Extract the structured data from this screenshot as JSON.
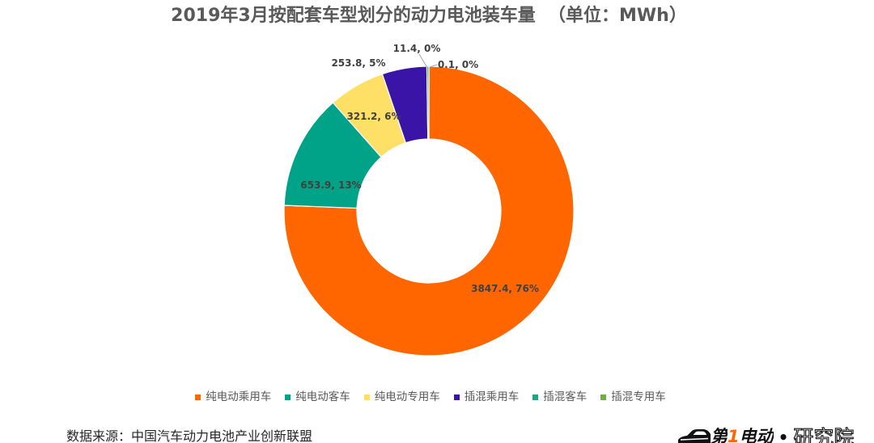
{
  "chart_data": {
    "type": "pie",
    "donut": true,
    "title": "2019年3月按配套车型划分的动力电池装车量  （单位：MWh）",
    "categories": [
      "纯电动乘用车",
      "纯电动客车",
      "纯电动专用车",
      "插混乘用车",
      "插混客车",
      "插混专用车"
    ],
    "values": [
      3847.4,
      653.9,
      321.2,
      253.8,
      11.4,
      0.1
    ],
    "data_labels": [
      "3847.4, 76%",
      "653.9, 13%",
      "321.2, 6%",
      "253.8, 5%",
      "11.4, 0%",
      "0.1, 0%"
    ],
    "colors": [
      "#FF6600",
      "#00A388",
      "#FFE066",
      "#3A14A6",
      "#20A387",
      "#70AD47"
    ],
    "legend_position": "bottom"
  },
  "footer": {
    "source": "数据来源：中国汽车动力电池产业创新联盟",
    "logo": {
      "brand_prefix": "第",
      "brand_number": "1",
      "brand_suffix": "电动",
      "separator": "•",
      "institute": "研究院"
    }
  }
}
